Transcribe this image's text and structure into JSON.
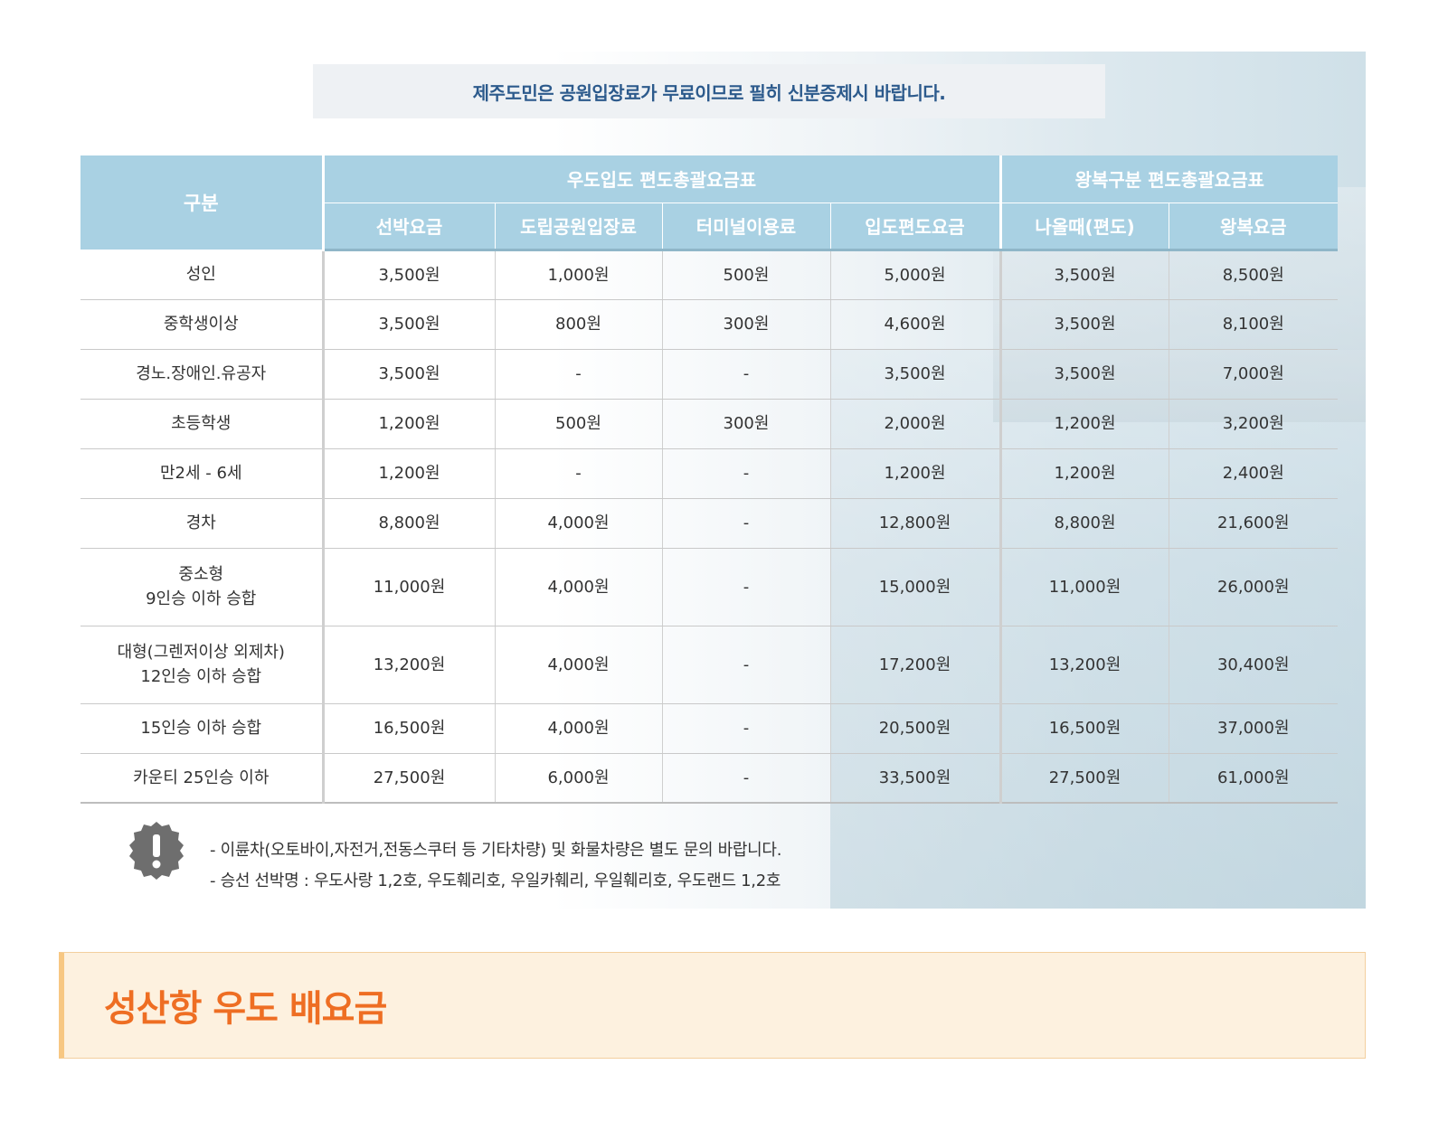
{
  "notice": "제주도민은 공원입장료가 무료이므로 필히 신분증제시 바랍니다.",
  "table": {
    "row_header": "구분",
    "group_headers": [
      "우도입도 편도총괄요금표",
      "왕복구분 편도총괄요금표"
    ],
    "columns": [
      "선박요금",
      "도립공원입장료",
      "터미널이용료",
      "입도편도요금",
      "나올때(편도)",
      "왕복요금"
    ],
    "rows": [
      {
        "label": "성인",
        "cells": [
          "3,500원",
          "1,000원",
          "500원",
          "5,000원",
          "3,500원",
          "8,500원"
        ]
      },
      {
        "label": "중학생이상",
        "cells": [
          "3,500원",
          "800원",
          "300원",
          "4,600원",
          "3,500원",
          "8,100원"
        ]
      },
      {
        "label": "경노.장애인.유공자",
        "cells": [
          "3,500원",
          "-",
          "-",
          "3,500원",
          "3,500원",
          "7,000원"
        ]
      },
      {
        "label": "초등학생",
        "cells": [
          "1,200원",
          "500원",
          "300원",
          "2,000원",
          "1,200원",
          "3,200원"
        ]
      },
      {
        "label": "만2세 - 6세",
        "cells": [
          "1,200원",
          "-",
          "-",
          "1,200원",
          "1,200원",
          "2,400원"
        ]
      },
      {
        "label": "경차",
        "cells": [
          "8,800원",
          "4,000원",
          "-",
          "12,800원",
          "8,800원",
          "21,600원"
        ]
      },
      {
        "label": "중소형",
        "label2": "9인승 이하 승합",
        "cells": [
          "11,000원",
          "4,000원",
          "-",
          "15,000원",
          "11,000원",
          "26,000원"
        ]
      },
      {
        "label": "대형(그렌저이상 외제차)",
        "label2": "12인승 이하 승합",
        "cells": [
          "13,200원",
          "4,000원",
          "-",
          "17,200원",
          "13,200원",
          "30,400원"
        ]
      },
      {
        "label": "15인승 이하 승합",
        "cells": [
          "16,500원",
          "4,000원",
          "-",
          "20,500원",
          "16,500원",
          "37,000원"
        ]
      },
      {
        "label": "카운티 25인승 이하",
        "cells": [
          "27,500원",
          "6,000원",
          "-",
          "33,500원",
          "27,500원",
          "61,000원"
        ]
      }
    ]
  },
  "notes": [
    "- 이륜차(오토바이,자전거,전동스쿠터 등 기타차량) 및 화물차량은 별도 문의 바랍니다.",
    "- 승선 선박명 : 우도사랑 1,2호, 우도훼리호, 우일카훼리, 우일훼리호, 우도랜드 1,2호"
  ],
  "icons": {
    "warning": "exclamation-badge-icon"
  },
  "colors": {
    "header_bg": "#a9d1e3",
    "notice_text": "#2c5a8c",
    "section_title": "#ee6e23",
    "section_bg": "#fdf1df"
  },
  "section_title": "성산항 우도 배요금"
}
